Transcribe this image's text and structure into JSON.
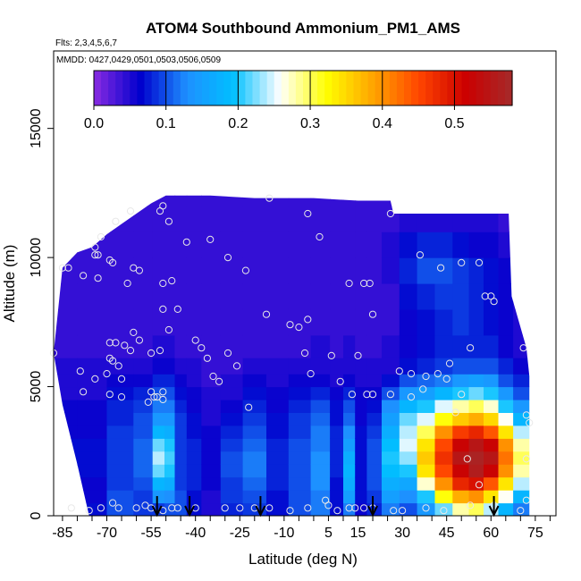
{
  "chart_data": {
    "type": "heatmap",
    "title": "ATOM4 Southbound Ammonium_PM1_AMS",
    "flights_note": "Flts: 2,3,4,5,6,7",
    "dates_note": "MMDD: 0427,0429,0501,0503,0506,0509",
    "xlabel": "Latitude (deg N)",
    "ylabel": "Altitude (m)",
    "xlim": [
      -88,
      82
    ],
    "ylim": [
      0,
      18000
    ],
    "x_ticks": [
      -85,
      -70,
      -55,
      -40,
      -25,
      -10,
      5,
      15,
      30,
      45,
      60,
      75
    ],
    "x_tick_labels": [
      "-85",
      "-70",
      "-55",
      "-40",
      "-25",
      "-10",
      "5",
      "15",
      "30",
      "45",
      "60",
      "75"
    ],
    "y_ticks": [
      0,
      5000,
      10000,
      15000
    ],
    "y_tick_labels": [
      "0",
      "5000",
      "10000",
      "15000"
    ],
    "colorbar": {
      "min": 0,
      "max": 0.58,
      "ticks": [
        0.0,
        0.1,
        0.2,
        0.3,
        0.4,
        0.5
      ],
      "tick_labels": [
        "0.0",
        "0.1",
        "0.2",
        "0.3",
        "0.4",
        "0.5"
      ],
      "colors": [
        "#8a2be2",
        "#0000cd",
        "#1e90ff",
        "#00bfff",
        "#ffffff",
        "#ffff00",
        "#ffa500",
        "#ff4500",
        "#cc0000",
        "#a52a2a"
      ]
    },
    "profile_tops": [
      {
        "lat": -88,
        "alt": 6300
      },
      {
        "lat": -85,
        "alt": 9600
      },
      {
        "lat": -80,
        "alt": 10200
      },
      {
        "lat": -75,
        "alt": 10400
      },
      {
        "lat": -70,
        "alt": 10900
      },
      {
        "lat": -65,
        "alt": 11300
      },
      {
        "lat": -60,
        "alt": 11700
      },
      {
        "lat": -55,
        "alt": 12100
      },
      {
        "lat": -50,
        "alt": 12400
      },
      {
        "lat": -35,
        "alt": 12400
      },
      {
        "lat": -20,
        "alt": 12300
      },
      {
        "lat": 0,
        "alt": 12300
      },
      {
        "lat": 15,
        "alt": 12200
      },
      {
        "lat": 26,
        "alt": 12200
      },
      {
        "lat": 27,
        "alt": 11700
      },
      {
        "lat": 50,
        "alt": 11700
      },
      {
        "lat": 60,
        "alt": 11700
      },
      {
        "lat": 66,
        "alt": 11700
      },
      {
        "lat": 67,
        "alt": 8500
      },
      {
        "lat": 72,
        "alt": 6500
      },
      {
        "lat": 73,
        "alt": 5400
      }
    ],
    "profile_bottoms": [
      {
        "lat": -88,
        "alt": 6300
      },
      {
        "lat": -85,
        "alt": 4300
      },
      {
        "lat": -80,
        "alt": 2000
      },
      {
        "lat": -76,
        "alt": 0
      },
      {
        "lat": 73,
        "alt": 0
      }
    ],
    "grid": {
      "lats": [
        -85,
        -75,
        -65,
        -57,
        -52,
        -49,
        -45,
        -41,
        -35,
        -28,
        -20,
        -12,
        -5,
        3,
        8,
        12,
        16,
        20,
        26,
        32,
        38,
        44,
        50,
        55,
        60,
        65,
        70
      ],
      "alts": [
        250,
        750,
        1250,
        1750,
        2250,
        2750,
        3250,
        3750,
        4250,
        4750,
        5250,
        5750,
        6500,
        7500,
        8500,
        9500,
        10500,
        11500,
        12500
      ],
      "values": [
        [
          0.07,
          0.06,
          0.06,
          0.07,
          0.07,
          0.07,
          0.06,
          0.06,
          0.06,
          0.05,
          0.05,
          0.05,
          0.04,
          0.04,
          0.04,
          0.04,
          0.04,
          0.04,
          0.04
        ],
        [
          0.07,
          0.06,
          0.06,
          0.07,
          0.07,
          0.07,
          0.06,
          0.06,
          0.06,
          0.05,
          0.05,
          0.05,
          0.04,
          0.04,
          0.04,
          0.04,
          0.04,
          0.04,
          0.04
        ],
        [
          0.1,
          0.1,
          0.09,
          0.09,
          0.09,
          0.09,
          0.09,
          0.08,
          0.08,
          0.07,
          0.06,
          0.05,
          0.04,
          0.04,
          0.04,
          0.04,
          0.04,
          0.04,
          0.04
        ],
        [
          0.09,
          0.09,
          0.1,
          0.11,
          0.11,
          0.11,
          0.1,
          0.1,
          0.09,
          0.08,
          0.06,
          0.05,
          0.04,
          0.04,
          0.04,
          0.04,
          0.04,
          0.04,
          0.04
        ],
        [
          0.09,
          0.14,
          0.18,
          0.22,
          0.24,
          0.22,
          0.18,
          0.14,
          0.12,
          0.1,
          0.08,
          0.06,
          0.05,
          0.04,
          0.04,
          0.04,
          0.04,
          0.04,
          0.04
        ],
        [
          0.1,
          0.13,
          0.17,
          0.2,
          0.21,
          0.2,
          0.17,
          0.14,
          0.12,
          0.1,
          0.08,
          0.06,
          0.05,
          0.04,
          0.04,
          0.04,
          0.04,
          0.04,
          0.04
        ],
        [
          0.1,
          0.1,
          0.09,
          0.09,
          0.09,
          0.09,
          0.09,
          0.09,
          0.08,
          0.07,
          0.06,
          0.05,
          0.04,
          0.04,
          0.04,
          0.04,
          0.04,
          0.04,
          0.04
        ],
        [
          0.07,
          0.07,
          0.08,
          0.08,
          0.08,
          0.08,
          0.07,
          0.07,
          0.06,
          0.06,
          0.05,
          0.05,
          0.04,
          0.04,
          0.04,
          0.04,
          0.04,
          0.04,
          0.04
        ],
        [
          0.05,
          0.05,
          0.06,
          0.06,
          0.06,
          0.06,
          0.06,
          0.05,
          0.05,
          0.05,
          0.04,
          0.04,
          0.04,
          0.04,
          0.04,
          0.04,
          0.04,
          0.04,
          0.04
        ],
        [
          0.08,
          0.09,
          0.09,
          0.1,
          0.1,
          0.09,
          0.08,
          0.07,
          0.06,
          0.05,
          0.05,
          0.04,
          0.04,
          0.04,
          0.04,
          0.04,
          0.04,
          0.04,
          0.04
        ],
        [
          0.09,
          0.1,
          0.11,
          0.12,
          0.12,
          0.11,
          0.1,
          0.09,
          0.08,
          0.07,
          0.06,
          0.05,
          0.04,
          0.04,
          0.04,
          0.04,
          0.04,
          0.04,
          0.04
        ],
        [
          0.07,
          0.07,
          0.08,
          0.08,
          0.08,
          0.08,
          0.07,
          0.07,
          0.06,
          0.06,
          0.05,
          0.05,
          0.04,
          0.04,
          0.04,
          0.04,
          0.04,
          0.04,
          0.04
        ],
        [
          0.1,
          0.1,
          0.1,
          0.1,
          0.1,
          0.1,
          0.09,
          0.09,
          0.08,
          0.07,
          0.06,
          0.05,
          0.04,
          0.04,
          0.04,
          0.04,
          0.04,
          0.04,
          0.04
        ],
        [
          0.12,
          0.12,
          0.13,
          0.13,
          0.13,
          0.12,
          0.12,
          0.11,
          0.1,
          0.08,
          0.06,
          0.05,
          0.05,
          0.04,
          0.04,
          0.04,
          0.04,
          0.04,
          0.04
        ],
        [
          0.07,
          0.07,
          0.07,
          0.08,
          0.08,
          0.08,
          0.08,
          0.07,
          0.07,
          0.06,
          0.05,
          0.05,
          0.04,
          0.04,
          0.04,
          0.04,
          0.04,
          0.04,
          0.04
        ],
        [
          0.12,
          0.15,
          0.17,
          0.18,
          0.17,
          0.15,
          0.13,
          0.11,
          0.1,
          0.08,
          0.06,
          0.05,
          0.05,
          0.04,
          0.04,
          0.04,
          0.04,
          0.04,
          0.04
        ],
        [
          0.06,
          0.07,
          0.07,
          0.07,
          0.07,
          0.07,
          0.07,
          0.06,
          0.06,
          0.06,
          0.05,
          0.05,
          0.04,
          0.04,
          0.04,
          0.04,
          0.04,
          0.04,
          0.04
        ],
        [
          0.08,
          0.09,
          0.1,
          0.1,
          0.1,
          0.1,
          0.09,
          0.08,
          0.07,
          0.06,
          0.05,
          0.05,
          0.04,
          0.04,
          0.04,
          0.04,
          0.04,
          0.04,
          0.04
        ],
        [
          0.12,
          0.15,
          0.17,
          0.19,
          0.2,
          0.19,
          0.17,
          0.15,
          0.13,
          0.1,
          0.07,
          0.05,
          0.05,
          0.04,
          0.04,
          0.05,
          0.05,
          0.04,
          0.04
        ],
        [
          0.1,
          0.13,
          0.16,
          0.2,
          0.23,
          0.25,
          0.24,
          0.22,
          0.18,
          0.14,
          0.1,
          0.07,
          0.06,
          0.06,
          0.07,
          0.08,
          0.07,
          0.05,
          0.04
        ],
        [
          0.14,
          0.2,
          0.27,
          0.34,
          0.36,
          0.34,
          0.3,
          0.25,
          0.2,
          0.15,
          0.11,
          0.08,
          0.07,
          0.07,
          0.08,
          0.1,
          0.08,
          0.05,
          0.04
        ],
        [
          0.22,
          0.32,
          0.4,
          0.45,
          0.47,
          0.45,
          0.4,
          0.32,
          0.25,
          0.18,
          0.12,
          0.09,
          0.08,
          0.08,
          0.09,
          0.1,
          0.08,
          0.05,
          0.04
        ],
        [
          0.28,
          0.38,
          0.48,
          0.52,
          0.55,
          0.52,
          0.46,
          0.36,
          0.28,
          0.2,
          0.14,
          0.1,
          0.08,
          0.09,
          0.09,
          0.09,
          0.07,
          0.05,
          0.04
        ],
        [
          0.3,
          0.4,
          0.5,
          0.56,
          0.57,
          0.55,
          0.48,
          0.38,
          0.3,
          0.22,
          0.15,
          0.1,
          0.08,
          0.08,
          0.08,
          0.08,
          0.06,
          0.05,
          0.04
        ],
        [
          0.24,
          0.34,
          0.44,
          0.52,
          0.55,
          0.52,
          0.44,
          0.35,
          0.27,
          0.2,
          0.14,
          0.1,
          0.08,
          0.07,
          0.07,
          0.07,
          0.06,
          0.05,
          0.04
        ],
        [
          0.18,
          0.26,
          0.34,
          0.4,
          0.42,
          0.4,
          0.34,
          0.26,
          0.2,
          0.14,
          0.1,
          0.08,
          0.06,
          0.06,
          0.06,
          0.06,
          0.05,
          0.04,
          0.04
        ],
        [
          0.12,
          0.18,
          0.24,
          0.28,
          0.3,
          0.28,
          0.24,
          0.18,
          0.14,
          0.1,
          0.08,
          0.06,
          0.05,
          0.05,
          0.05,
          0.05,
          0.04,
          0.04,
          0.04
        ]
      ]
    },
    "observation_points": [
      [
        -88,
        6300
      ],
      [
        -85,
        9600
      ],
      [
        -83,
        9600
      ],
      [
        -78,
        9300
      ],
      [
        -74,
        10400
      ],
      [
        -74,
        10100
      ],
      [
        -73,
        10100
      ],
      [
        -72,
        10800
      ],
      [
        -69,
        9900
      ],
      [
        -68,
        9800
      ],
      [
        -73,
        9200
      ],
      [
        -67,
        11400
      ],
      [
        -62,
        11800
      ],
      [
        -61,
        9600
      ],
      [
        -59,
        9500
      ],
      [
        -63,
        9000
      ],
      [
        -52,
        11800
      ],
      [
        -51,
        12000
      ],
      [
        -49,
        11400
      ],
      [
        -48,
        9100
      ],
      [
        -51,
        9000
      ],
      [
        -43,
        10600
      ],
      [
        -35,
        10700
      ],
      [
        -29,
        10000
      ],
      [
        -23,
        9500
      ],
      [
        -15,
        12300
      ],
      [
        -16,
        7800
      ],
      [
        -2,
        11700
      ],
      [
        2,
        10800
      ],
      [
        -5,
        7300
      ],
      [
        -8,
        7400
      ],
      [
        -2,
        7600
      ],
      [
        12,
        9000
      ],
      [
        17,
        9000
      ],
      [
        19,
        9000
      ],
      [
        20,
        7800
      ],
      [
        26,
        11700
      ],
      [
        36,
        10100
      ],
      [
        43,
        9600
      ],
      [
        50,
        9800
      ],
      [
        56,
        9800
      ],
      [
        58,
        8500
      ],
      [
        60,
        8500
      ],
      [
        61,
        8300
      ],
      [
        -79,
        5600
      ],
      [
        -78,
        4800
      ],
      [
        -74,
        5300
      ],
      [
        -70,
        5500
      ],
      [
        -69,
        6100
      ],
      [
        -68,
        6000
      ],
      [
        -69,
        6700
      ],
      [
        -67,
        6700
      ],
      [
        -66,
        5800
      ],
      [
        -65,
        5300
      ],
      [
        -64,
        6600
      ],
      [
        -62,
        6400
      ],
      [
        -61,
        7100
      ],
      [
        -59,
        6800
      ],
      [
        -55,
        6300
      ],
      [
        -52,
        6400
      ],
      [
        -49,
        7200
      ],
      [
        -46,
        8000
      ],
      [
        -51,
        8000
      ],
      [
        -40,
        6800
      ],
      [
        -38,
        6500
      ],
      [
        -36,
        6100
      ],
      [
        -34,
        5400
      ],
      [
        -32,
        5200
      ],
      [
        -29,
        6300
      ],
      [
        -26,
        5800
      ],
      [
        -22,
        4200
      ],
      [
        -3,
        6300
      ],
      [
        -1,
        5500
      ],
      [
        6,
        6200
      ],
      [
        9,
        5200
      ],
      [
        15,
        6200
      ],
      [
        13,
        4700
      ],
      [
        18,
        4700
      ],
      [
        20,
        4700
      ],
      [
        26,
        4700
      ],
      [
        29,
        5600
      ],
      [
        33,
        5500
      ],
      [
        38,
        5400
      ],
      [
        42,
        5500
      ],
      [
        46,
        5900
      ],
      [
        53,
        6500
      ],
      [
        45,
        5300
      ],
      [
        37,
        4900
      ],
      [
        33,
        4600
      ],
      [
        50,
        4700
      ],
      [
        48,
        4000
      ],
      [
        52,
        2200
      ],
      [
        56,
        1200
      ],
      [
        71,
        6500
      ],
      [
        72,
        3900
      ],
      [
        73,
        3600
      ],
      [
        72,
        2200
      ],
      [
        72,
        600
      ],
      [
        70,
        200
      ],
      [
        61,
        400
      ],
      [
        53,
        400
      ],
      [
        44,
        200
      ],
      [
        38,
        300
      ],
      [
        30,
        200
      ],
      [
        27,
        200
      ],
      [
        20,
        300
      ],
      [
        17,
        300
      ],
      [
        14,
        300
      ],
      [
        12,
        300
      ],
      [
        8,
        200
      ],
      [
        5,
        400
      ],
      [
        4,
        600
      ],
      [
        -2,
        300
      ],
      [
        -8,
        200
      ],
      [
        -15,
        300
      ],
      [
        -20,
        300
      ],
      [
        -25,
        300
      ],
      [
        -30,
        300
      ],
      [
        -40,
        300
      ],
      [
        -46,
        300
      ],
      [
        -48,
        300
      ],
      [
        -51,
        200
      ],
      [
        -55,
        300
      ],
      [
        -57,
        400
      ],
      [
        -60,
        300
      ],
      [
        -66,
        300
      ],
      [
        -68,
        500
      ],
      [
        -72,
        300
      ],
      [
        -76,
        200
      ],
      [
        -82,
        300
      ],
      [
        -55,
        4800
      ],
      [
        -53,
        4600
      ],
      [
        -51,
        4800
      ],
      [
        -51,
        4500
      ],
      [
        -54,
        4600
      ],
      [
        -56,
        4400
      ],
      [
        -69,
        4700
      ],
      [
        -65,
        4600
      ]
    ],
    "flight_arrows_lat": [
      -53,
      -42,
      -18,
      20,
      61
    ]
  }
}
